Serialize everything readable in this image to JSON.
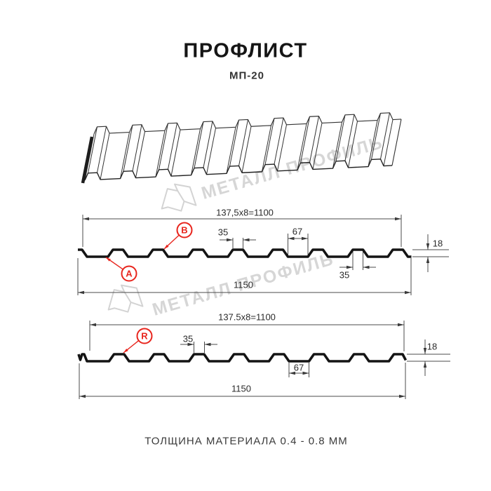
{
  "header": {
    "title": "ПРОФЛИСТ",
    "subtitle": "МП-20"
  },
  "watermark": {
    "brand": "МЕТАЛЛ ПРОФИЛЬ"
  },
  "drawing_top": {
    "width_total": "137,5x8=1100",
    "dim_rib_top": "35",
    "dim_pan": "67",
    "dim_height": "18",
    "dim_rib_bottom": "35",
    "overall_width": "1150",
    "label_a": "А",
    "label_b": "В"
  },
  "drawing_bottom": {
    "width_total": "137.5x8=1100",
    "dim_rib": "35",
    "dim_pan": "67",
    "dim_height": "18",
    "overall_width": "1150",
    "label_r": "R"
  },
  "footer": {
    "note": "ТОЛЩИНА МАТЕРИАЛА 0.4 - 0.8 ММ"
  },
  "colors": {
    "accent_red": "#e8251d",
    "line": "#1a1a1a",
    "watermark": "#d0d0d0"
  }
}
